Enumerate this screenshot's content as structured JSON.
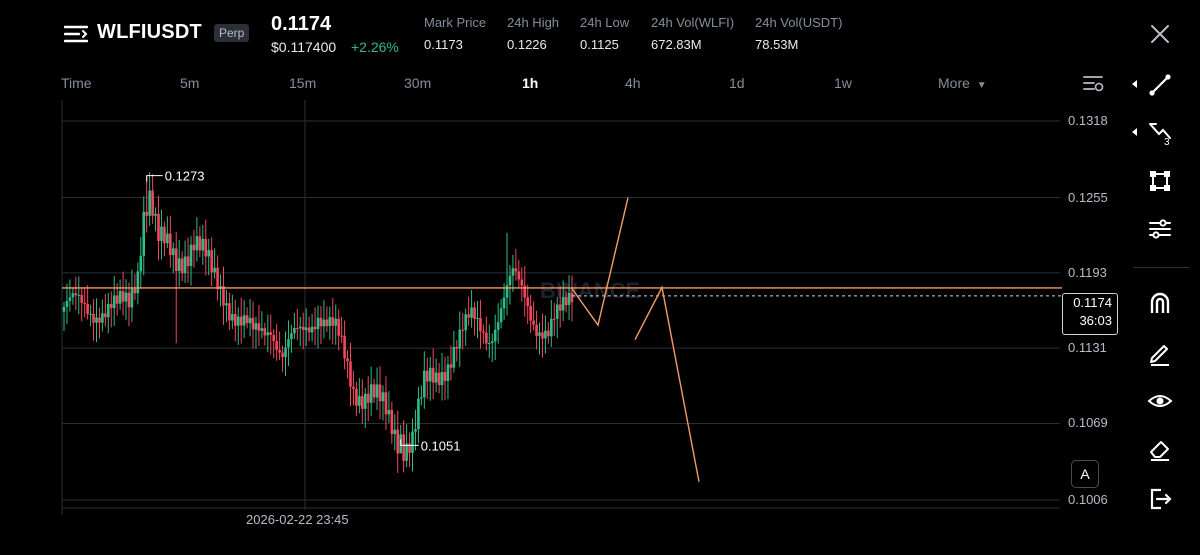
{
  "header": {
    "symbol": "WLFIUSDT",
    "contract_type": "Perp",
    "last_price": "0.1174",
    "usd_price": "$0.117400",
    "change_percent": "+2.26%",
    "stats": [
      {
        "label": "Mark Price",
        "value": "0.1173"
      },
      {
        "label": "24h High",
        "value": "0.1226"
      },
      {
        "label": "24h Low",
        "value": "0.1125"
      },
      {
        "label": "24h Vol(WLFI)",
        "value": "672.83M"
      },
      {
        "label": "24h Vol(USDT)",
        "value": "78.53M"
      }
    ]
  },
  "intervals": {
    "items": [
      "Time",
      "5m",
      "15m",
      "30m",
      "1h",
      "4h",
      "1d",
      "1w"
    ],
    "active": "1h",
    "more_label": "More"
  },
  "chart": {
    "price_axis": [
      "0.1318",
      "0.1255",
      "0.1193",
      "0.1131",
      "0.1069",
      "0.1006"
    ],
    "current_price": "0.1174",
    "countdown": "36:03",
    "high_marker": "0.1273",
    "low_marker": "0.1051",
    "crosshair_time": "2026-02-22 23:45",
    "watermark": "BINANCE",
    "auto_scale_label": "A"
  },
  "chart_data": {
    "type": "candlestick",
    "title": "",
    "xlabel": "",
    "ylabel": "",
    "ylim": [
      0.1006,
      0.1318
    ],
    "y_ticks": [
      0.1318,
      0.1255,
      0.1193,
      0.1131,
      0.1069,
      0.1006
    ],
    "horizontal_line": 0.1174,
    "annotations": [
      {
        "label": "0.1273",
        "value": 0.1273
      },
      {
        "label": "0.1051",
        "value": 0.1051
      }
    ]
  },
  "colors": {
    "up": "#2ebd85",
    "down": "#f6465d",
    "line": "#f39a6b",
    "background": "#000000"
  },
  "toolbar_icons": [
    "trend-line-icon",
    "fib-icon",
    "shape-icon",
    "indicator-icon",
    "magnet-icon",
    "pencil-icon",
    "eye-icon",
    "eraser-icon",
    "exit-icon"
  ]
}
